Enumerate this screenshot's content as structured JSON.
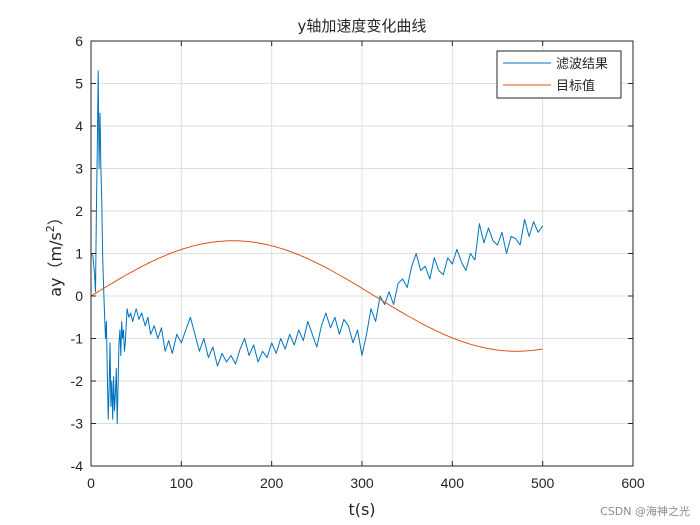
{
  "watermark": "CSDN @海神之光",
  "chart_data": {
    "type": "line",
    "title": "y轴加速度变化曲线",
    "xlabel": "t(s)",
    "ylabel_parts": {
      "base": "ay（m/s",
      "sup": "2",
      "tail": "）"
    },
    "xlim": [
      0,
      600
    ],
    "ylim": [
      -4,
      6
    ],
    "xticks": [
      0,
      100,
      200,
      300,
      400,
      500,
      600
    ],
    "yticks": [
      -4,
      -3,
      -2,
      -1,
      0,
      1,
      2,
      3,
      4,
      5,
      6
    ],
    "grid": true,
    "legend_position": "top-right",
    "series": [
      {
        "name": "滤波结果",
        "color": "#0072BD",
        "x": [
          0,
          2,
          4,
          5,
          6,
          7,
          8,
          9,
          10,
          11,
          12,
          13,
          14,
          15,
          16,
          17,
          18,
          19,
          20,
          21,
          22,
          23,
          24,
          25,
          26,
          27,
          28,
          29,
          30,
          31,
          32,
          33,
          34,
          35,
          36,
          37,
          38,
          39,
          40,
          42,
          44,
          46,
          48,
          50,
          53,
          56,
          60,
          63,
          66,
          70,
          74,
          78,
          82,
          86,
          90,
          95,
          100,
          105,
          110,
          115,
          120,
          125,
          130,
          135,
          140,
          145,
          150,
          155,
          160,
          165,
          170,
          175,
          180,
          185,
          190,
          195,
          200,
          205,
          210,
          215,
          220,
          225,
          230,
          235,
          240,
          245,
          250,
          255,
          260,
          265,
          270,
          275,
          280,
          285,
          290,
          295,
          300,
          305,
          310,
          315,
          320,
          325,
          330,
          335,
          340,
          345,
          350,
          355,
          360,
          365,
          370,
          375,
          380,
          385,
          390,
          395,
          400,
          405,
          410,
          415,
          420,
          425,
          430,
          435,
          440,
          445,
          450,
          455,
          460,
          465,
          470,
          475,
          480,
          485,
          490,
          495,
          500
        ],
        "y": [
          1.0,
          0.95,
          0.5,
          0.1,
          2.0,
          3.5,
          5.3,
          3.0,
          4.3,
          3.0,
          2.2,
          0.9,
          0.2,
          -0.4,
          -1.0,
          -0.6,
          -1.8,
          -2.9,
          -2.2,
          -1.1,
          -2.6,
          -2.0,
          -2.9,
          -1.9,
          -2.7,
          -2.3,
          -1.7,
          -3.0,
          -2.1,
          -1.1,
          -0.8,
          -1.4,
          -0.6,
          -1.0,
          -0.8,
          -1.3,
          -1.1,
          -0.7,
          -0.3,
          -0.5,
          -0.4,
          -0.6,
          -0.45,
          -0.3,
          -0.55,
          -0.4,
          -0.7,
          -0.5,
          -0.9,
          -0.7,
          -1.0,
          -0.75,
          -1.3,
          -1.05,
          -1.35,
          -0.9,
          -1.1,
          -0.8,
          -0.5,
          -0.9,
          -1.3,
          -1.0,
          -1.45,
          -1.2,
          -1.65,
          -1.35,
          -1.55,
          -1.4,
          -1.6,
          -1.25,
          -1.0,
          -1.4,
          -1.15,
          -1.55,
          -1.3,
          -1.45,
          -1.1,
          -1.35,
          -1.0,
          -1.25,
          -0.9,
          -1.15,
          -0.8,
          -1.05,
          -0.6,
          -0.9,
          -1.2,
          -0.7,
          -0.4,
          -0.75,
          -0.5,
          -0.9,
          -0.55,
          -0.7,
          -1.1,
          -0.8,
          -1.4,
          -0.9,
          -0.3,
          -0.6,
          0.0,
          -0.2,
          0.1,
          -0.2,
          0.3,
          0.4,
          0.2,
          0.7,
          1.0,
          0.6,
          0.7,
          0.4,
          0.9,
          0.6,
          0.5,
          0.9,
          0.75,
          1.1,
          0.8,
          0.6,
          1.0,
          0.85,
          1.7,
          1.25,
          1.6,
          1.3,
          1.2,
          1.5,
          1.0,
          1.4,
          1.35,
          1.2,
          1.8,
          1.4,
          1.75,
          1.5,
          1.65
        ]
      },
      {
        "name": "目标值",
        "color": "#D95319",
        "function": "1.3*sin(2*pi*t/628)",
        "x_range": [
          0,
          500
        ]
      }
    ]
  }
}
